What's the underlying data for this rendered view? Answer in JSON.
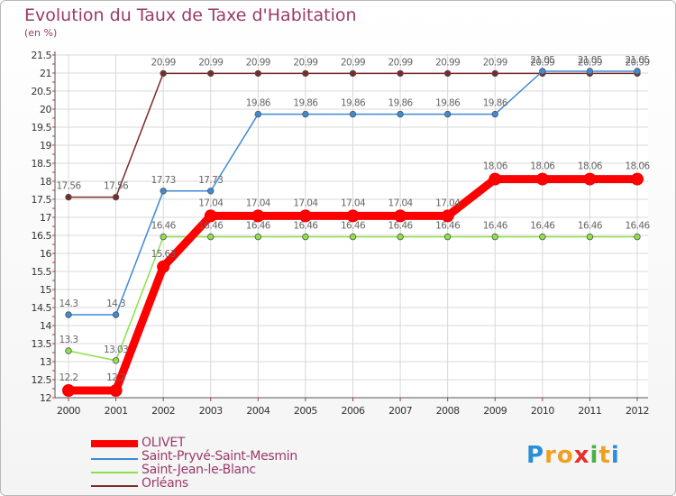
{
  "header": {
    "title": "Evolution du Taux de Taxe d'Habitation",
    "subtitle": "(en %)"
  },
  "chart_data": {
    "type": "line",
    "title": "Evolution du Taux de Taxe d'Habitation",
    "ylabel": "(en %)",
    "xlabel": "",
    "x": [
      "2000",
      "2001",
      "2002",
      "2003",
      "2004",
      "2005",
      "2006",
      "2007",
      "2008",
      "2009",
      "2010",
      "2011",
      "2012"
    ],
    "ylim": [
      12,
      21.5
    ],
    "yticks": [
      "12",
      "12.5",
      "13",
      "13.5",
      "14",
      "14.5",
      "15",
      "15.5",
      "16",
      "16.5",
      "17",
      "17.5",
      "18",
      "18.5",
      "19",
      "19.5",
      "20",
      "20.5",
      "21",
      "21.5"
    ],
    "grid": true,
    "series": [
      {
        "name": "Orléans",
        "color": "#7b2a2a",
        "values": [
          17.56,
          17.56,
          20.99,
          20.99,
          20.99,
          20.99,
          20.99,
          20.99,
          20.99,
          20.99,
          20.99,
          20.99,
          20.99
        ],
        "labels": [
          "17.56",
          "17.56",
          "20.99",
          "20.99",
          "20.99",
          "20.99",
          "20.99",
          "20.99",
          "20.99",
          "20.99",
          "20.99",
          "20.99",
          "20.99"
        ]
      },
      {
        "name": "Saint-Pryvé-Saint-Mesmin",
        "color": "#3d8ad6",
        "values": [
          14.3,
          14.3,
          17.73,
          17.73,
          19.86,
          19.86,
          19.86,
          19.86,
          19.86,
          19.86,
          21.05,
          21.05,
          21.05
        ],
        "labels": [
          "14.3",
          "14.3",
          "17.73",
          "17.73",
          "19.86",
          "19.86",
          "19.86",
          "19.86",
          "19.86",
          "19.86",
          "21.05",
          "21.05",
          "21.05"
        ]
      },
      {
        "name": "Saint-Jean-le-Blanc",
        "color": "#8ee04a",
        "values": [
          13.3,
          13.03,
          16.46,
          16.46,
          16.46,
          16.46,
          16.46,
          16.46,
          16.46,
          16.46,
          16.46,
          16.46,
          16.46
        ],
        "labels": [
          "13.3",
          "13.03",
          "16.46",
          "16.46",
          "16.46",
          "16.46",
          "16.46",
          "16.46",
          "16.46",
          "16.46",
          "16.46",
          "16.46",
          "16.46"
        ]
      },
      {
        "name": "OLIVET",
        "color": "#ff0000",
        "values": [
          12.2,
          12.2,
          15.63,
          17.04,
          17.04,
          17.04,
          17.04,
          17.04,
          17.04,
          18.06,
          18.06,
          18.06,
          18.06
        ],
        "labels": [
          "12.2",
          "12.2",
          "15.63",
          "17.04",
          "17.04",
          "17.04",
          "17.04",
          "17.04",
          "17.04",
          "18.06",
          "18.06",
          "18.06",
          "18.06"
        ]
      }
    ],
    "legend": [
      "OLIVET",
      "Saint-Pryvé-Saint-Mesmin",
      "Saint-Jean-le-Blanc",
      "Orléans"
    ],
    "legend_position": "bottom-left"
  },
  "legend_items": [
    {
      "name": "OLIVET",
      "color": "#ff0000"
    },
    {
      "name": "Saint-Pryvé-Saint-Mesmin",
      "color": "#3d8ad6"
    },
    {
      "name": "Saint-Jean-le-Blanc",
      "color": "#8ee04a"
    },
    {
      "name": "Orléans",
      "color": "#7b2a2a"
    }
  ],
  "logo": {
    "letters": [
      "P",
      "r",
      "o",
      "x",
      "i",
      "t",
      "i"
    ],
    "colors": [
      "#2a8fd6",
      "#f0a020",
      "#f0a020",
      "#e8302a",
      "#4ab04a",
      "#f0a020",
      "#2a8fd6"
    ]
  }
}
